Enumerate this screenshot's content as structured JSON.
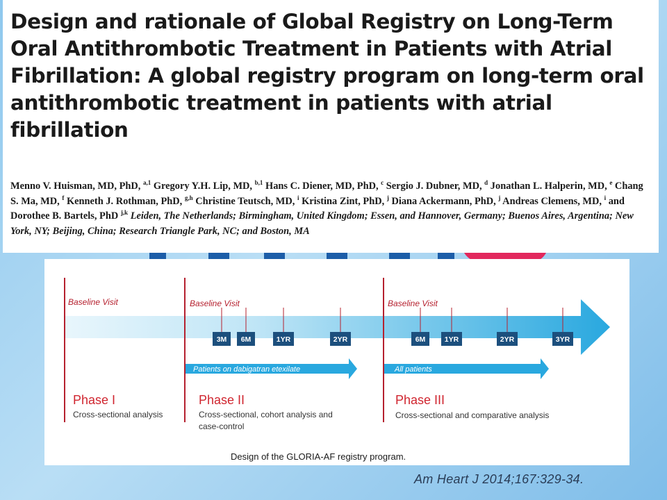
{
  "colors": {
    "background": "#9ed0f1",
    "title_text": "#1a1a1a",
    "phase_line": "#b5202e",
    "phase_text": "#d0252f",
    "timeline_arrow": "#29a8df",
    "timeline_fade": "#e8f6fc",
    "visit_box": "#1c4f7d",
    "citation_text": "#2a3d57"
  },
  "paper": {
    "title": "Design and rationale of Global Registry on Long-Term Oral Antithrombotic Treatment in Patients with Atrial Fibrillation: A global registry program on long-term oral antithrombotic treatment in patients with atrial fibrillation",
    "authors": [
      {
        "name": "Menno V. Huisman, MD, PhD,",
        "sup": "a,1"
      },
      {
        "name": "Gregory Y.H. Lip, MD,",
        "sup": "b,1"
      },
      {
        "name": "Hans C. Diener, MD, PhD,",
        "sup": "c"
      },
      {
        "name": "Sergio J. Dubner, MD,",
        "sup": "d"
      },
      {
        "name": "Jonathan L. Halperin, MD,",
        "sup": "e"
      },
      {
        "name": "Chang S. Ma, MD,",
        "sup": "f"
      },
      {
        "name": "Kenneth J. Rothman, PhD,",
        "sup": "g,h"
      },
      {
        "name": "Christine Teutsch, MD,",
        "sup": "i"
      },
      {
        "name": "Kristina Zint, PhD,",
        "sup": "j"
      },
      {
        "name": "Diana Ackermann, PhD,",
        "sup": "j"
      },
      {
        "name": "Andreas Clemens, MD,",
        "sup": "i"
      },
      {
        "name": "and Dorothee B. Bartels, PhD",
        "sup": "j,k"
      }
    ],
    "affiliations": "Leiden, The Netherlands; Birmingham, United Kingdom; Essen, and Hannover, Germany; Buenos Aires, Argentina; New York, NY; Beijing, China; Research Triangle Park, NC; and Boston, MA"
  },
  "figure": {
    "caption": "Design of the GLORIA-AF registry program.",
    "baseline_label": "Baseline Visit",
    "phases": [
      {
        "name": "Phase I",
        "description": [
          "Cross-sectional analysis"
        ]
      },
      {
        "name": "Phase II",
        "description": [
          "Cross-sectional, cohort analysis and",
          "case-control"
        ]
      },
      {
        "name": "Phase III",
        "description": [
          "Cross-sectional and comparative analysis"
        ]
      }
    ],
    "phase2_visits": [
      "3M",
      "6M",
      "1YR",
      "2YR"
    ],
    "phase3_visits": [
      "6M",
      "1YR",
      "2YR",
      "3YR"
    ],
    "phase2_population": "Patients on dabigatran etexilate",
    "phase3_population": "All patients"
  },
  "citation": "Am Heart J 2014;167:329-34."
}
